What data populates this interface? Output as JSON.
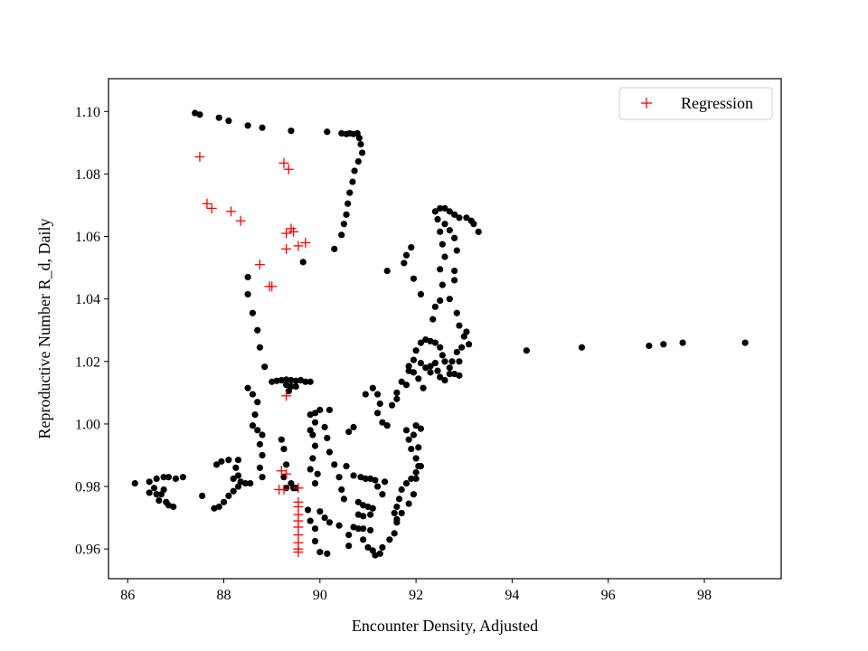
{
  "chart_data": {
    "type": "scatter",
    "title": "",
    "xlabel": "Encounter Density, Adjusted",
    "ylabel": "Reproductive Number R_d, Daily",
    "xlim": [
      85.6,
      99.6
    ],
    "ylim": [
      0.9505,
      1.1105
    ],
    "xticks": [
      86,
      88,
      90,
      92,
      94,
      96,
      98
    ],
    "xtick_labels": [
      "86",
      "88",
      "90",
      "92",
      "94",
      "96",
      "98"
    ],
    "yticks": [
      0.96,
      0.98,
      1.0,
      1.02,
      1.04,
      1.06,
      1.08,
      1.1
    ],
    "ytick_labels": [
      "0.96",
      "0.98",
      "1.00",
      "1.02",
      "1.04",
      "1.06",
      "1.08",
      "1.10"
    ],
    "grid": false,
    "legend": {
      "position": "top-right",
      "entries": [
        "Regression"
      ]
    },
    "series": [
      {
        "marker": "dot",
        "color": "#000000",
        "points": [
          [
            87.4,
            1.0995
          ],
          [
            87.5,
            1.099
          ],
          [
            87.9,
            1.098
          ],
          [
            88.1,
            1.097
          ],
          [
            88.5,
            1.0955
          ],
          [
            88.8,
            1.0948
          ],
          [
            89.4,
            1.0938
          ],
          [
            90.15,
            1.0935
          ],
          [
            90.45,
            1.093
          ],
          [
            90.55,
            1.0928
          ],
          [
            90.62,
            1.093
          ],
          [
            90.7,
            1.0928
          ],
          [
            90.78,
            1.093
          ],
          [
            90.82,
            1.0915
          ],
          [
            90.85,
            1.0895
          ],
          [
            90.88,
            1.0868
          ],
          [
            90.8,
            1.084
          ],
          [
            90.72,
            1.081
          ],
          [
            90.68,
            1.0775
          ],
          [
            90.62,
            1.074
          ],
          [
            90.58,
            1.0705
          ],
          [
            90.55,
            1.067
          ],
          [
            90.5,
            1.064
          ],
          [
            90.45,
            1.0605
          ],
          [
            90.3,
            1.056
          ],
          [
            89.65,
            1.0518
          ],
          [
            88.5,
            1.047
          ],
          [
            88.5,
            1.0415
          ],
          [
            88.6,
            1.0355
          ],
          [
            88.7,
            1.03
          ],
          [
            88.75,
            1.0245
          ],
          [
            88.85,
            1.0183
          ],
          [
            89.0,
            1.0135
          ],
          [
            89.1,
            1.0138
          ],
          [
            89.2,
            1.014
          ],
          [
            89.3,
            1.0142
          ],
          [
            89.4,
            1.014
          ],
          [
            89.5,
            1.0138
          ],
          [
            89.6,
            1.014
          ],
          [
            89.7,
            1.0135
          ],
          [
            89.8,
            1.0135
          ],
          [
            89.3,
            1.0125
          ],
          [
            89.4,
            1.012
          ],
          [
            89.5,
            1.012
          ],
          [
            89.35,
            1.0105
          ],
          [
            88.5,
            1.0115
          ],
          [
            88.6,
            1.0095
          ],
          [
            88.7,
            1.007
          ],
          [
            88.65,
            1.003
          ],
          [
            88.6,
            0.9995
          ],
          [
            88.7,
            0.998
          ],
          [
            88.8,
            0.9965
          ],
          [
            88.75,
            0.9935
          ],
          [
            88.8,
            0.99
          ],
          [
            88.75,
            0.986
          ],
          [
            88.8,
            0.983
          ],
          [
            89.2,
            0.995
          ],
          [
            89.25,
            0.992
          ],
          [
            89.3,
            0.987
          ],
          [
            89.25,
            0.983
          ],
          [
            89.4,
            0.981
          ],
          [
            89.3,
            0.9795
          ],
          [
            89.45,
            0.9795
          ],
          [
            89.5,
            0.9795
          ],
          [
            89.8,
            1.003
          ],
          [
            89.8,
            0.998
          ],
          [
            89.9,
            1.0035
          ],
          [
            89.9,
            1.0005
          ],
          [
            89.85,
            0.9965
          ],
          [
            89.9,
            0.993
          ],
          [
            89.85,
            0.989
          ],
          [
            89.8,
            0.9855
          ],
          [
            89.95,
            0.984
          ],
          [
            89.9,
            0.981
          ],
          [
            90.0,
            1.0045
          ],
          [
            90.2,
            1.0045
          ],
          [
            90.1,
            0.999
          ],
          [
            90.15,
            0.9955
          ],
          [
            90.2,
            0.991
          ],
          [
            90.3,
            0.987
          ],
          [
            90.4,
            0.983
          ],
          [
            90.45,
            0.979
          ],
          [
            90.5,
            0.976
          ],
          [
            89.75,
            0.9725
          ],
          [
            89.8,
            0.969
          ],
          [
            89.9,
            0.9665
          ],
          [
            89.9,
            0.9625
          ],
          [
            90.0,
            0.959
          ],
          [
            90.15,
            0.9585
          ],
          [
            90.0,
            0.972
          ],
          [
            90.1,
            0.97
          ],
          [
            90.2,
            0.9685
          ],
          [
            90.4,
            0.9675
          ],
          [
            90.7,
            0.999
          ],
          [
            90.6,
            0.9975
          ],
          [
            90.55,
            0.9865
          ],
          [
            90.7,
            0.9835
          ],
          [
            90.85,
            0.983
          ],
          [
            90.95,
            0.9825
          ],
          [
            91.05,
            0.9825
          ],
          [
            91.15,
            0.982
          ],
          [
            91.2,
            0.98
          ],
          [
            90.8,
            0.975
          ],
          [
            90.9,
            0.974
          ],
          [
            91.0,
            0.9735
          ],
          [
            91.1,
            0.973
          ],
          [
            90.8,
            0.971
          ],
          [
            90.9,
            0.9705
          ],
          [
            91.05,
            0.971
          ],
          [
            90.7,
            0.967
          ],
          [
            90.8,
            0.9665
          ],
          [
            90.9,
            0.9665
          ],
          [
            91.05,
            0.966
          ],
          [
            90.6,
            0.9645
          ],
          [
            90.6,
            0.961
          ],
          [
            90.9,
            0.963
          ],
          [
            91.0,
            0.9605
          ],
          [
            91.1,
            0.9595
          ],
          [
            91.15,
            0.958
          ],
          [
            91.25,
            0.9585
          ],
          [
            91.3,
            0.9605
          ],
          [
            91.45,
            0.963
          ],
          [
            91.55,
            0.965
          ],
          [
            91.6,
            0.9685
          ],
          [
            91.55,
            0.9715
          ],
          [
            91.6,
            0.9735
          ],
          [
            91.65,
            0.976
          ],
          [
            91.7,
            0.979
          ],
          [
            91.8,
            0.981
          ],
          [
            91.9,
            0.9825
          ],
          [
            92.0,
            0.9845
          ],
          [
            92.05,
            0.9865
          ],
          [
            91.3,
            0.9775
          ],
          [
            91.35,
            0.9815
          ],
          [
            90.95,
            1.0095
          ],
          [
            91.1,
            1.0115
          ],
          [
            91.2,
            1.0095
          ],
          [
            91.25,
            1.0065
          ],
          [
            91.2,
            1.0035
          ],
          [
            91.3,
            1.0005
          ],
          [
            91.4,
            0.9995
          ],
          [
            91.5,
            1.006
          ],
          [
            91.6,
            1.01
          ],
          [
            91.7,
            1.0135
          ],
          [
            91.85,
            1.017
          ],
          [
            91.95,
            1.0205
          ],
          [
            92.0,
            1.0235
          ],
          [
            92.1,
            1.026
          ],
          [
            92.2,
            1.027
          ],
          [
            92.3,
            1.0265
          ],
          [
            92.4,
            1.026
          ],
          [
            92.5,
            1.0245
          ],
          [
            92.55,
            1.022
          ],
          [
            92.6,
            1.02
          ],
          [
            92.7,
            1.018
          ],
          [
            92.8,
            1.016
          ],
          [
            92.9,
            1.0155
          ],
          [
            92.9,
            1.02
          ],
          [
            92.1,
            1.0195
          ],
          [
            92.2,
            1.018
          ],
          [
            92.3,
            1.0165
          ],
          [
            92.3,
            1.0185
          ],
          [
            92.4,
            1.0195
          ],
          [
            92.45,
            1.017
          ],
          [
            92.5,
            1.015
          ],
          [
            92.6,
            1.014
          ],
          [
            92.7,
            1.016
          ],
          [
            92.75,
            1.02
          ],
          [
            92.85,
            1.023
          ],
          [
            92.95,
            1.0245
          ],
          [
            93.1,
            1.0255
          ],
          [
            93.05,
            1.0295
          ],
          [
            92.35,
            1.0335
          ],
          [
            92.4,
            1.0375
          ],
          [
            92.5,
            1.0395
          ],
          [
            92.55,
            1.0445
          ],
          [
            92.5,
            1.0495
          ],
          [
            92.6,
            1.0535
          ],
          [
            92.55,
            1.0575
          ],
          [
            92.5,
            1.0615
          ],
          [
            92.45,
            1.0655
          ],
          [
            92.4,
            1.068
          ],
          [
            92.5,
            1.069
          ],
          [
            92.6,
            1.069
          ],
          [
            92.7,
            1.068
          ],
          [
            92.8,
            1.067
          ],
          [
            92.9,
            1.066
          ],
          [
            93.05,
            1.066
          ],
          [
            93.15,
            1.065
          ],
          [
            93.2,
            1.064
          ],
          [
            93.3,
            1.0615
          ],
          [
            92.6,
            1.064
          ],
          [
            92.7,
            1.062
          ],
          [
            92.8,
            1.0595
          ],
          [
            92.85,
            1.0555
          ],
          [
            92.8,
            1.049
          ],
          [
            92.8,
            1.046
          ],
          [
            92.7,
            1.04
          ],
          [
            92.85,
            1.0355
          ],
          [
            92.9,
            1.0315
          ],
          [
            93.0,
            1.028
          ],
          [
            91.9,
            1.0565
          ],
          [
            91.8,
            1.054
          ],
          [
            91.75,
            1.0515
          ],
          [
            91.4,
            1.049
          ],
          [
            91.95,
            1.0465
          ],
          [
            92.1,
            1.0415
          ],
          [
            91.85,
            1.0185
          ],
          [
            91.95,
            1.0165
          ],
          [
            92.05,
            1.0145
          ],
          [
            92.15,
            1.0115
          ],
          [
            91.8,
            1.0125
          ],
          [
            91.6,
            1.008
          ],
          [
            91.8,
            0.998
          ],
          [
            91.85,
            0.995
          ],
          [
            91.95,
            0.9965
          ],
          [
            91.9,
            0.992
          ],
          [
            92.0,
            0.989
          ],
          [
            92.05,
            0.9925
          ],
          [
            92.0,
            0.9995
          ],
          [
            92.1,
            0.9985
          ],
          [
            92.1,
            0.9865
          ],
          [
            92.0,
            0.9825
          ],
          [
            91.95,
            0.9775
          ],
          [
            91.85,
            0.9745
          ],
          [
            91.7,
            0.9715
          ],
          [
            91.6,
            0.9695
          ],
          [
            94.3,
            1.0235
          ],
          [
            95.45,
            1.0245
          ],
          [
            96.85,
            1.025
          ],
          [
            97.15,
            1.0255
          ],
          [
            97.55,
            1.026
          ],
          [
            98.85,
            1.026
          ],
          [
            86.15,
            0.981
          ],
          [
            86.45,
            0.9815
          ],
          [
            86.6,
            0.9825
          ],
          [
            86.75,
            0.983
          ],
          [
            86.85,
            0.983
          ],
          [
            87.0,
            0.9825
          ],
          [
            87.15,
            0.983
          ],
          [
            86.45,
            0.978
          ],
          [
            86.55,
            0.9795
          ],
          [
            86.6,
            0.9775
          ],
          [
            86.65,
            0.9755
          ],
          [
            86.7,
            0.9775
          ],
          [
            86.75,
            0.979
          ],
          [
            86.8,
            0.975
          ],
          [
            86.85,
            0.974
          ],
          [
            86.95,
            0.9735
          ],
          [
            87.55,
            0.977
          ],
          [
            87.8,
            0.973
          ],
          [
            87.9,
            0.9735
          ],
          [
            88.0,
            0.975
          ],
          [
            88.1,
            0.977
          ],
          [
            88.2,
            0.9785
          ],
          [
            88.3,
            0.98
          ],
          [
            88.45,
            0.981
          ],
          [
            88.55,
            0.981
          ],
          [
            87.85,
            0.987
          ],
          [
            87.95,
            0.988
          ],
          [
            88.1,
            0.9885
          ],
          [
            88.3,
            0.9885
          ],
          [
            88.25,
            0.986
          ],
          [
            88.2,
            0.9825
          ],
          [
            88.3,
            0.9835
          ],
          [
            88.35,
            0.9815
          ]
        ]
      },
      {
        "name": "Regression",
        "marker": "plus",
        "color": "#ff0000",
        "points": [
          [
            87.5,
            1.0855
          ],
          [
            87.65,
            1.0705
          ],
          [
            87.75,
            1.069
          ],
          [
            88.15,
            1.068
          ],
          [
            88.35,
            1.065
          ],
          [
            88.75,
            1.051
          ],
          [
            88.95,
            1.044
          ],
          [
            89.0,
            1.044
          ],
          [
            89.25,
            1.0835
          ],
          [
            89.35,
            1.0815
          ],
          [
            89.3,
            1.061
          ],
          [
            89.4,
            1.0625
          ],
          [
            89.45,
            1.0615
          ],
          [
            89.3,
            1.056
          ],
          [
            89.55,
            1.057
          ],
          [
            89.7,
            1.058
          ],
          [
            89.3,
            1.009
          ],
          [
            89.2,
            0.985
          ],
          [
            89.3,
            0.984
          ],
          [
            89.15,
            0.979
          ],
          [
            89.25,
            0.979
          ],
          [
            89.55,
            0.9795
          ],
          [
            89.55,
            0.975
          ],
          [
            89.55,
            0.9735
          ],
          [
            89.55,
            0.971
          ],
          [
            89.55,
            0.969
          ],
          [
            89.55,
            0.967
          ],
          [
            89.55,
            0.9645
          ],
          [
            89.55,
            0.962
          ],
          [
            89.55,
            0.96
          ],
          [
            89.55,
            0.959
          ]
        ]
      }
    ]
  }
}
